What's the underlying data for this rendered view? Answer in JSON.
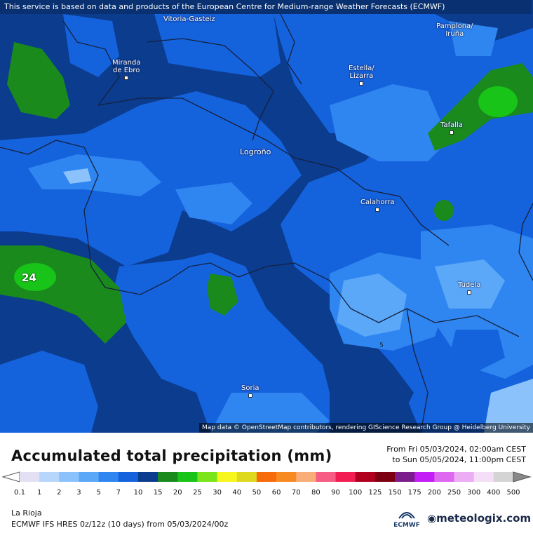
{
  "header_note": "This service is based on data and products of the European Centre for Medium-range Weather Forecasts (ECMWF)",
  "attribution": "Map data © OpenStreetMap contributors, rendering GIScience Research Group @ Heidelberg University",
  "cities": [
    {
      "key": "vitoria",
      "name": "Vitoria-Gasteiz"
    },
    {
      "key": "pamplona",
      "name": "Pamplona/\nIruña"
    },
    {
      "key": "miranda",
      "name": "Miranda\nde Ebro"
    },
    {
      "key": "estella",
      "name": "Estella/\nLizarra"
    },
    {
      "key": "tafalla",
      "name": "Tafalla"
    },
    {
      "key": "logrono",
      "name": "Logroño"
    },
    {
      "key": "calahorra",
      "name": "Calahorra"
    },
    {
      "key": "tudela",
      "name": "Tudela"
    },
    {
      "key": "soria",
      "name": "Soria"
    }
  ],
  "map_values": {
    "max_label": "24",
    "min_label": "5"
  },
  "legend": {
    "title": "Accumulated total precipitation (mm)",
    "range_from": "From Fri 05/03/2024, 02:00am CEST",
    "range_to": "to Sun 05/05/2024, 11:00pm CEST",
    "labels": [
      "0.1",
      "1",
      "2",
      "3",
      "5",
      "7",
      "10",
      "15",
      "20",
      "25",
      "30",
      "40",
      "50",
      "60",
      "70",
      "80",
      "90",
      "100",
      "125",
      "150",
      "175",
      "200",
      "250",
      "300",
      "400",
      "500"
    ],
    "colors": [
      "#e3e0f3",
      "#b6d7fb",
      "#8cc2fb",
      "#5ba7f8",
      "#2f86f0",
      "#1562dd",
      "#0b3c8e",
      "#1a8a1d",
      "#18c418",
      "#7ae51a",
      "#f7f71e",
      "#dfd91e",
      "#f76b0a",
      "#f78b22",
      "#f9ad77",
      "#f75c84",
      "#f21e53",
      "#b1001e",
      "#7d0012",
      "#7b1e8b",
      "#c21ef5",
      "#de68f0",
      "#ecadf5",
      "#f4def8",
      "#d4d4d4"
    ]
  },
  "footer": {
    "region": "La Rioja",
    "model": "ECMWF IFS HRES 0z/12z (10 days)  from  05/03/2024/00z",
    "ecmwf_logo": "ECMWF",
    "brand": "meteologix.com"
  }
}
